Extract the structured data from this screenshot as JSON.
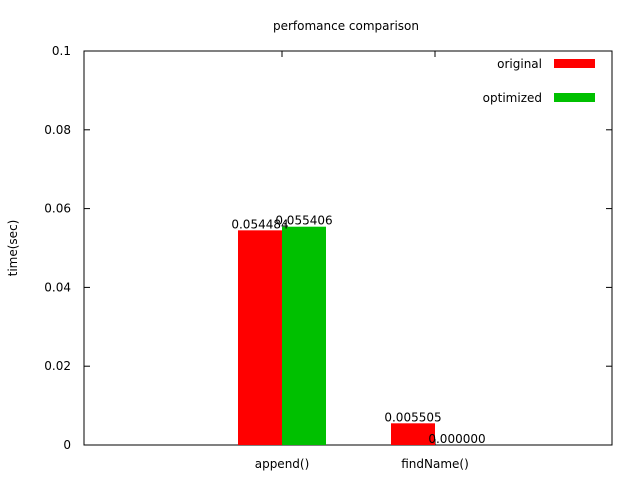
{
  "chart_data": {
    "type": "bar",
    "title": "perfomance comparison",
    "xlabel": "",
    "ylabel": "time(sec)",
    "ylim": [
      0,
      0.1
    ],
    "yticks": [
      "0",
      "0.02",
      "0.04",
      "0.06",
      "0.08",
      "0.1"
    ],
    "ytick_values": [
      0,
      0.02,
      0.04,
      0.06,
      0.08,
      0.1
    ],
    "categories": [
      "append()",
      "findName()"
    ],
    "series": [
      {
        "name": "original",
        "color": "#ff0000",
        "values": [
          0.054484,
          0.005505
        ],
        "labels": [
          "0.054484",
          "0.005505"
        ]
      },
      {
        "name": "optimized",
        "color": "#00c000",
        "values": [
          0.055406,
          0.0
        ],
        "labels": [
          "0.055406",
          "0.000000"
        ]
      }
    ],
    "grid": false,
    "legend": "top-right"
  }
}
